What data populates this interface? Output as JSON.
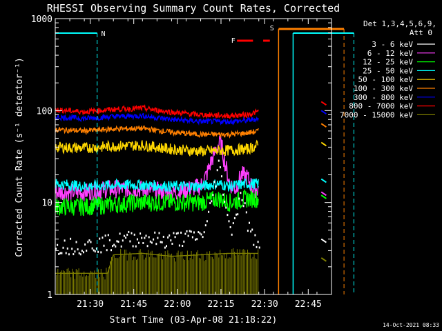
{
  "chart_data": {
    "type": "line",
    "title": "RHESSI Observing Summary Count Rates, Corrected",
    "xlabel": "Start Time (03-Apr-08 21:18:22)",
    "ylabel": "Corrected Count Rate (s⁻¹ detector⁻¹)",
    "yscale": "log",
    "ylim": [
      1,
      1000
    ],
    "xlim_min": [
      0,
      82
    ],
    "yticks": [
      {
        "value": 1,
        "label": "1"
      },
      {
        "value": 10,
        "label": "10"
      },
      {
        "value": 100,
        "label": "100"
      },
      {
        "value": 1000,
        "label": "1000"
      }
    ],
    "xticks": [
      {
        "value": 12,
        "label": "21:30"
      },
      {
        "value": 27,
        "label": "21:45"
      },
      {
        "value": 42,
        "label": "22:00"
      },
      {
        "value": 57,
        "label": "22:15"
      },
      {
        "value": 72,
        "label": "22:30"
      },
      {
        "value": 87,
        "label": "22:45"
      }
    ],
    "legend_header": [
      "Det 1,3,4,5,6,9,",
      "Att 0"
    ],
    "legend_position": "top-right, outside plot",
    "series": [
      {
        "name": "3 - 6 keV",
        "color": "#000000",
        "x": [
          0,
          5,
          10,
          14,
          18,
          22,
          26,
          30,
          34,
          38,
          42,
          46,
          50,
          52,
          54,
          56,
          58,
          60,
          62,
          64,
          66,
          68,
          70
        ],
        "values": [
          3.5,
          3.5,
          3.5,
          3.6,
          3.8,
          4,
          4.2,
          4.3,
          4.1,
          4,
          4.2,
          4.3,
          4.5,
          6,
          13,
          27,
          12,
          5,
          8,
          13,
          6,
          4,
          4
        ]
      },
      {
        "name": "6 - 12 keV",
        "color": "#ff40ff",
        "x": [
          0,
          5,
          10,
          14,
          18,
          22,
          26,
          30,
          34,
          38,
          42,
          46,
          50,
          52,
          54,
          56,
          57,
          58,
          60,
          62,
          64,
          66,
          68,
          70
        ],
        "values": [
          13,
          13,
          13,
          13.5,
          14,
          14,
          14,
          14,
          13.5,
          13,
          13,
          14,
          15,
          20,
          30,
          42,
          45,
          30,
          16,
          14,
          20,
          19,
          14,
          14
        ]
      },
      {
        "name": "12 - 25 keV",
        "color": "#00ff00",
        "x": [
          0,
          10,
          20,
          30,
          40,
          50,
          56,
          60,
          66,
          70
        ],
        "values": [
          9,
          9,
          9.5,
          10,
          10,
          10,
          11,
          10,
          11,
          11
        ]
      },
      {
        "name": "25 - 50 keV",
        "color": "#00ffff",
        "x": [
          0,
          10,
          20,
          30,
          40,
          50,
          56,
          60,
          66,
          70
        ],
        "values": [
          16,
          15,
          15.5,
          15.5,
          15,
          15,
          16,
          15,
          16,
          16
        ]
      },
      {
        "name": "50 - 100 keV",
        "color": "#ffd700",
        "x": [
          0,
          10,
          20,
          30,
          40,
          50,
          60,
          66,
          70
        ],
        "values": [
          40,
          39,
          41,
          42,
          38,
          36,
          37,
          38,
          42
        ]
      },
      {
        "name": "100 - 300 keV",
        "color": "#ff8000",
        "x": [
          0,
          10,
          20,
          30,
          40,
          50,
          60,
          66,
          70
        ],
        "values": [
          62,
          60,
          63,
          64,
          58,
          55,
          55,
          57,
          60
        ]
      },
      {
        "name": "300 - 800 keV",
        "color": "#0000ff",
        "x": [
          0,
          10,
          20,
          30,
          40,
          50,
          60,
          66,
          70
        ],
        "values": [
          85,
          82,
          86,
          88,
          80,
          76,
          76,
          78,
          82
        ]
      },
      {
        "name": "800 - 7000 keV",
        "color": "#ff0000",
        "x": [
          0,
          10,
          20,
          30,
          40,
          50,
          60,
          66,
          70
        ],
        "values": [
          102,
          97,
          103,
          106,
          96,
          90,
          88,
          90,
          98
        ]
      },
      {
        "name": "7000 - 15000 keV",
        "color": "#808000",
        "x": [
          0,
          18,
          20,
          30,
          40,
          50,
          60,
          70
        ],
        "values": [
          1.7,
          1.7,
          2.7,
          2.8,
          2.6,
          2.7,
          2.8,
          2.8
        ]
      }
    ],
    "flags": [
      {
        "label": "N",
        "color": "#00ffff"
      },
      {
        "label": "F",
        "color": "#ff0000"
      },
      {
        "label": "S",
        "color": "#ff8000"
      }
    ]
  },
  "footer": {
    "timestamp": "14-Oct-2021 08:33"
  }
}
